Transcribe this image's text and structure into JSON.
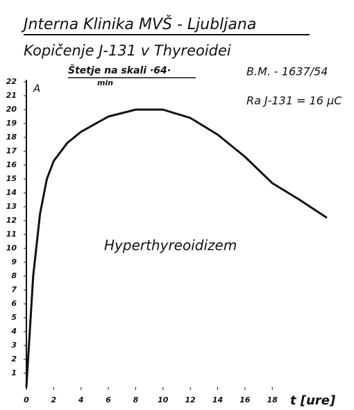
{
  "chart_data": {
    "type": "line",
    "title": "Jnterna Klinika MVŠ - Ljubljana",
    "subtitle": "Kopičenje J-131 v Thyreoidei",
    "annotations": [
      "Štetje na skali ·64·",
      "min",
      "B.M. - 1637/54",
      "Ra J-131 = 16 μC",
      "Hyperthyreoidizem"
    ],
    "y_label": "A",
    "x_label": "t [ure]",
    "x": [
      0,
      0.5,
      1,
      1.5,
      2,
      3,
      4,
      6,
      8,
      10,
      12,
      14,
      16,
      18,
      20,
      22
    ],
    "values": [
      0,
      8,
      12.5,
      15,
      16.3,
      17.6,
      18.4,
      19.5,
      20,
      20,
      19.4,
      18.2,
      16.6,
      14.7,
      13.5,
      12.2
    ],
    "color": "#111111",
    "xlim": [
      0,
      22
    ],
    "ylim": [
      0,
      22
    ],
    "xticks": [
      0,
      2,
      4,
      6,
      8,
      10,
      12,
      14,
      16,
      18
    ],
    "yticks": [
      1,
      2,
      3,
      4,
      5,
      6,
      7,
      8,
      9,
      10,
      11,
      12,
      13,
      14,
      15,
      16,
      17,
      18,
      19,
      20,
      21,
      22
    ],
    "grid": false
  }
}
